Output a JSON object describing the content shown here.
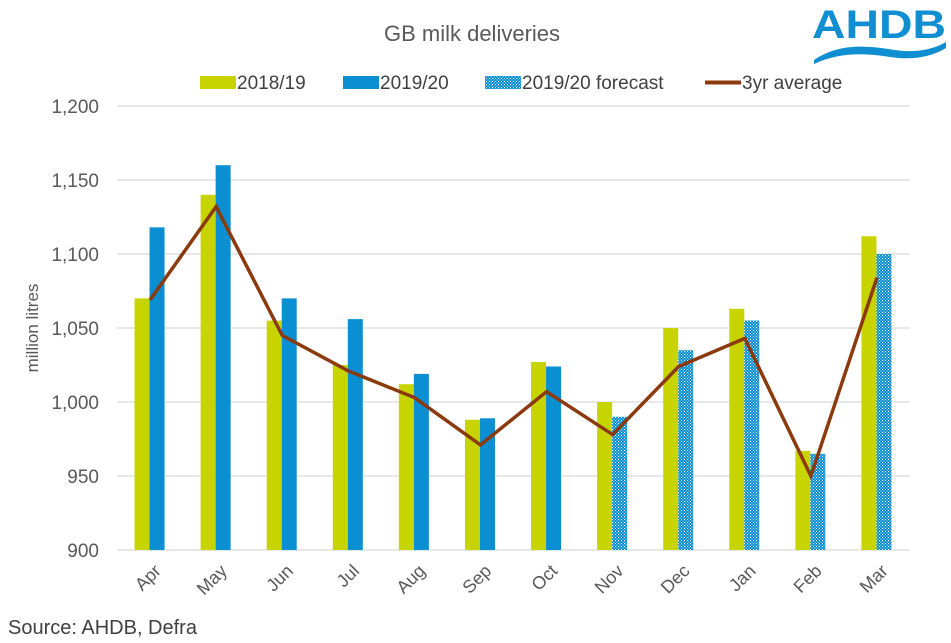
{
  "logo": {
    "text": "AHDB",
    "color": "#0f8fd2"
  },
  "source": "Source: AHDB, Defra",
  "chart_data": {
    "type": "bar",
    "title": "GB milk deliveries",
    "xlabel": "",
    "ylabel": "million litres",
    "ylim": [
      900,
      1200
    ],
    "yticks": [
      900,
      950,
      1000,
      1050,
      1100,
      1150,
      1200
    ],
    "ytick_labels": [
      "900",
      "950",
      "1,000",
      "1,050",
      "1,100",
      "1,150",
      "1,200"
    ],
    "grid": true,
    "legend_position": "top",
    "categories": [
      "Apr",
      "May",
      "Jun",
      "Jul",
      "Aug",
      "Sep",
      "Oct",
      "Nov",
      "Dec",
      "Jan",
      "Feb",
      "Mar"
    ],
    "series": [
      {
        "name": "2018/19",
        "kind": "bar",
        "color": "#c8d400",
        "values": [
          1070,
          1140,
          1055,
          1025,
          1012,
          988,
          1027,
          1000,
          1050,
          1063,
          967,
          1112
        ]
      },
      {
        "name": "2019/20",
        "kind": "bar",
        "color": "#0a8fd2",
        "values": [
          1118,
          1160,
          1070,
          1056,
          1019,
          989,
          1024,
          null,
          null,
          null,
          null,
          null
        ]
      },
      {
        "name": "2019/20 forecast",
        "kind": "bar-patterned",
        "color": "#0a8fd2",
        "values": [
          null,
          null,
          null,
          null,
          null,
          null,
          null,
          990,
          1035,
          1055,
          965,
          1100
        ]
      },
      {
        "name": "3yr average",
        "kind": "line",
        "color": "#8b3a0e",
        "values": [
          1069,
          1132,
          1045,
          1021,
          1003,
          971,
          1007,
          978,
          1024,
          1043,
          950,
          1084
        ]
      }
    ]
  }
}
